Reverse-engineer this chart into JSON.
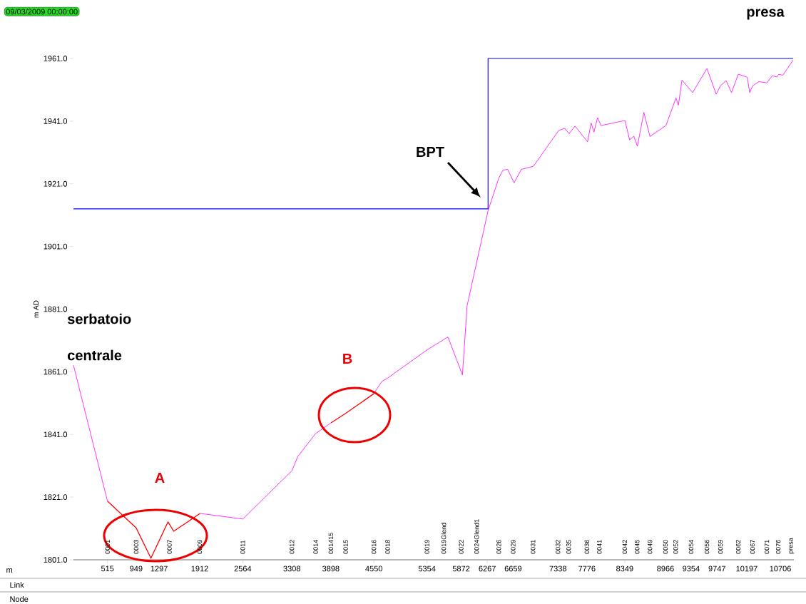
{
  "chart_data": {
    "type": "line",
    "ylabel": "m AD",
    "xlabel": "m",
    "x": [
      0,
      515,
      949,
      1173,
      1432,
      1518,
      1917,
      2564,
      3308,
      3398,
      3668,
      3900,
      4121,
      4548,
      4669,
      4758,
      5362,
      5672,
      5891,
      5962,
      6105,
      6279,
      6441,
      6506,
      6577,
      6674,
      6782,
      6966,
      7349,
      7441,
      7505,
      7597,
      7786,
      7840,
      7883,
      7937,
      7991,
      8353,
      8423,
      8487,
      8541,
      8639,
      8731,
      8974,
      9125,
      9162,
      9216,
      9378,
      9594,
      9734,
      9799,
      9885,
      9966,
      10069,
      10204,
      10242,
      10286,
      10383,
      10502,
      10583,
      10653,
      10680,
      10745,
      10900
    ],
    "series": [
      {
        "color": "#ff00ff",
        "values": [
          1863.1,
          1819.7,
          null,
          null,
          null,
          null,
          1815.8,
          1814.0,
          1829.4,
          1834.0,
          1841.3,
          1844.7,
          null,
          1854.0,
          1857.9,
          1859.0,
          1868.1,
          1872.1,
          1860.0,
          1882.1,
          1895.8,
          1912.4,
          1922.8,
          1925.4,
          1925.6,
          1921.3,
          1925.6,
          1926.6,
          1938.0,
          1938.7,
          1937.0,
          1939.4,
          1934.4,
          1940.4,
          1937.5,
          1942.1,
          1939.6,
          1941.2,
          1935.0,
          1936.2,
          1933.0,
          1943.8,
          1936.1,
          1939.6,
          1948.4,
          1946.1,
          1954.1,
          1950.1,
          1957.8,
          1949.6,
          1952.3,
          1953.9,
          1950.1,
          1956.0,
          1955.0,
          1950.1,
          1952.3,
          1953.6,
          1953.2,
          1955.5,
          1955.1,
          1955.9,
          1955.7,
          1960.5
        ]
      },
      {
        "color": "#ff0000",
        "values": [
          null,
          1819.7,
          1811.2,
          1801.5,
          1813.1,
          1810.1,
          1815.8,
          null,
          null,
          null,
          null,
          1844.7,
          1847.7,
          1854.0,
          null,
          null,
          null,
          null,
          null,
          null,
          null,
          null,
          null,
          null,
          null,
          null,
          null,
          null,
          null,
          null,
          null,
          null,
          null,
          null,
          null,
          null,
          null,
          null,
          null,
          null,
          null,
          null,
          null,
          null,
          null,
          null,
          null,
          null,
          null,
          null,
          null,
          null,
          null,
          null,
          null,
          null,
          null,
          null,
          null,
          null,
          null,
          null,
          null,
          null
        ]
      },
      {
        "type": "step",
        "color": "#0000ff",
        "x": [
          0,
          6279,
          10900
        ],
        "values": [
          1913,
          1961,
          1961
        ]
      }
    ],
    "xlim": [
      0,
      10911
    ],
    "ylim": [
      1801,
      1961
    ],
    "xticks": [
      515,
      949,
      1297,
      1912,
      2564,
      3308,
      3898,
      4550,
      5354,
      5872,
      6267,
      6659,
      7338,
      7776,
      8349,
      8966,
      9354,
      9747,
      10197,
      10706
    ],
    "yticks": [
      {
        "value": 1801,
        "label": "1801.0"
      },
      {
        "value": 1821,
        "label": "1821.0"
      },
      {
        "value": 1841,
        "label": "1841.0"
      },
      {
        "value": 1861,
        "label": "1861.0"
      },
      {
        "value": 1881,
        "label": "1881.0"
      },
      {
        "value": 1901,
        "label": "1901.0"
      },
      {
        "value": 1921,
        "label": "1921.0"
      },
      {
        "value": 1941,
        "label": "1941.0"
      },
      {
        "value": 1961,
        "label": "1961.0"
      }
    ],
    "annotations": [
      "09/03/2009 00:00:00",
      "Link",
      "Node",
      "serbatoio",
      "centrale",
      "BPT",
      "presa",
      "A",
      "B",
      "0001",
      "0003",
      "0007",
      "0009",
      "0011",
      "0012",
      "0014",
      "001415",
      "0015",
      "0016",
      "0018",
      "0019",
      "0019Glend",
      "0022",
      "0024Glend1",
      "0026",
      "0029",
      "0031",
      "0032",
      "0035",
      "0036",
      "0041",
      "0042",
      "0045",
      "0049",
      "0050",
      "0052",
      "0054",
      "0056",
      "0059",
      "0062",
      "0067",
      "0071",
      "0076",
      "presa"
    ]
  }
}
